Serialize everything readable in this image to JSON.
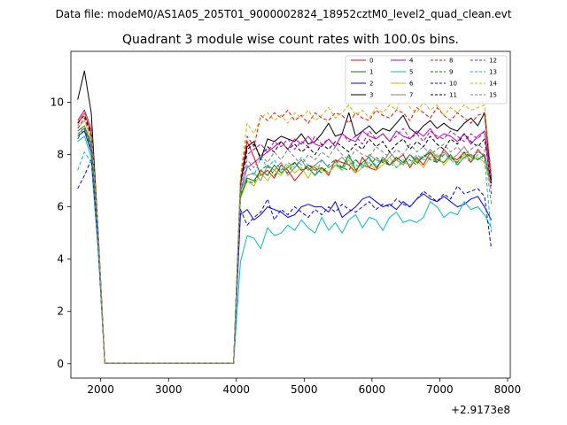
{
  "header": {
    "file_label": "Data file: modeM0/AS1A05_205T01_9000002824_18952cztM0_level2_quad_clean.evt"
  },
  "chart_data": {
    "type": "line",
    "title": "Quadrant 3 module wise count rates with 100.0s bins.",
    "xlabel": "",
    "ylabel": "",
    "x_offset_label": "+2.9173e8",
    "x_offset": 291730000,
    "xlim": [
      1560,
      8040
    ],
    "ylim": [
      -0.55,
      11.95
    ],
    "xticks": [
      2000,
      3000,
      4000,
      5000,
      6000,
      7000,
      8000
    ],
    "xtick_labels": [
      "2000",
      "3000",
      "4000",
      "5000",
      "6000",
      "7000",
      "8000"
    ],
    "yticks": [
      0,
      2,
      4,
      6,
      8,
      10
    ],
    "ytick_labels": [
      "0",
      "2",
      "4",
      "6",
      "8",
      "10"
    ],
    "grid": false,
    "legend_position": "top-right",
    "legend_ncol": 4,
    "x": [
      1660,
      1760,
      1860,
      1960,
      2060,
      2160,
      2260,
      2360,
      2460,
      2560,
      2660,
      2760,
      2860,
      2960,
      3060,
      3160,
      3260,
      3360,
      3460,
      3560,
      3660,
      3760,
      3860,
      3960,
      4060,
      4160,
      4260,
      4360,
      4460,
      4560,
      4660,
      4760,
      4860,
      4960,
      5060,
      5160,
      5260,
      5360,
      5460,
      5560,
      5660,
      5760,
      5860,
      5960,
      6060,
      6160,
      6260,
      6360,
      6460,
      6560,
      6660,
      6760,
      6860,
      6960,
      7060,
      7160,
      7260,
      7360,
      7460,
      7560,
      7660,
      7760
    ],
    "series": [
      {
        "name": "0",
        "color": "#ff0000",
        "dash": false,
        "values": [
          9.2,
          9.6,
          8.8,
          5.0,
          0.02,
          0.02,
          0.02,
          0.02,
          0.02,
          0.02,
          0.02,
          0.02,
          0.02,
          0.02,
          0.02,
          0.02,
          0.02,
          0.02,
          0.02,
          0.02,
          0.02,
          0.02,
          0.02,
          0.02,
          6.9,
          8.5,
          7.9,
          7.2,
          7.4,
          7.1,
          7.6,
          7.4,
          7.0,
          7.3,
          7.6,
          7.4,
          7.5,
          7.2,
          7.8,
          7.7,
          7.6,
          7.3,
          7.9,
          7.5,
          7.4,
          7.9,
          7.6,
          7.8,
          8.0,
          7.5,
          7.9,
          7.6,
          8.1,
          7.7,
          8.2,
          7.9,
          7.8,
          8.1,
          7.7,
          8.2,
          7.9,
          7.0
        ]
      },
      {
        "name": "1",
        "color": "#008000",
        "dash": false,
        "values": [
          8.9,
          9.1,
          8.4,
          4.9,
          0.02,
          0.02,
          0.02,
          0.02,
          0.02,
          0.02,
          0.02,
          0.02,
          0.02,
          0.02,
          0.02,
          0.02,
          0.02,
          0.02,
          0.02,
          0.02,
          0.02,
          0.02,
          0.02,
          0.02,
          6.4,
          7.1,
          7.0,
          7.4,
          7.2,
          7.6,
          7.3,
          7.5,
          7.7,
          7.4,
          7.5,
          7.2,
          7.5,
          7.3,
          7.6,
          7.5,
          8.0,
          7.4,
          7.7,
          7.9,
          7.5,
          7.8,
          7.6,
          7.9,
          7.7,
          8.0,
          7.7,
          7.9,
          8.1,
          7.8,
          7.7,
          8.0,
          7.6,
          7.9,
          8.0,
          7.8,
          8.0,
          6.9
        ]
      },
      {
        "name": "2",
        "color": "#0000ff",
        "dash": false,
        "values": [
          8.7,
          8.9,
          8.1,
          4.7,
          0.02,
          0.02,
          0.02,
          0.02,
          0.02,
          0.02,
          0.02,
          0.02,
          0.02,
          0.02,
          0.02,
          0.02,
          0.02,
          0.02,
          0.02,
          0.02,
          0.02,
          0.02,
          0.02,
          0.02,
          5.7,
          5.9,
          5.5,
          5.7,
          6.0,
          5.9,
          5.8,
          5.6,
          5.7,
          6.0,
          6.1,
          6.0,
          6.0,
          5.8,
          6.2,
          5.6,
          5.8,
          6.0,
          6.3,
          6.4,
          6.2,
          6.0,
          6.1,
          5.9,
          6.2,
          6.0,
          6.3,
          6.5,
          6.3,
          6.2,
          6.4,
          6.2,
          6.0,
          6.1,
          6.3,
          6.4,
          6.0,
          5.5
        ]
      },
      {
        "name": "3",
        "color": "#000000",
        "dash": false,
        "values": [
          10.1,
          11.2,
          9.6,
          5.2,
          0.02,
          0.02,
          0.02,
          0.02,
          0.02,
          0.02,
          0.02,
          0.02,
          0.02,
          0.02,
          0.02,
          0.02,
          0.02,
          0.02,
          0.02,
          0.02,
          0.02,
          0.02,
          0.02,
          0.02,
          6.9,
          8.3,
          8.5,
          7.8,
          8.6,
          8.5,
          8.7,
          8.6,
          8.5,
          8.8,
          8.4,
          8.5,
          8.8,
          9.2,
          8.7,
          8.8,
          9.6,
          8.7,
          8.9,
          9.1,
          8.8,
          9.0,
          8.9,
          9.2,
          9.5,
          9.0,
          8.8,
          9.1,
          9.3,
          9.0,
          9.2,
          9.0,
          8.9,
          9.2,
          9.4,
          9.1,
          9.6,
          7.0
        ]
      },
      {
        "name": "4",
        "color": "#c000c0",
        "dash": false,
        "values": [
          9.3,
          9.7,
          9.0,
          5.1,
          0.02,
          0.02,
          0.02,
          0.02,
          0.02,
          0.02,
          0.02,
          0.02,
          0.02,
          0.02,
          0.02,
          0.02,
          0.02,
          0.02,
          0.02,
          0.02,
          0.02,
          0.02,
          0.02,
          0.02,
          6.6,
          7.5,
          7.7,
          7.9,
          8.1,
          8.3,
          8.5,
          8.2,
          8.6,
          8.4,
          8.7,
          8.4,
          8.3,
          8.6,
          8.3,
          8.8,
          8.6,
          8.5,
          8.9,
          8.7,
          8.6,
          8.8,
          8.5,
          8.9,
          8.7,
          8.6,
          8.9,
          8.7,
          9.0,
          8.6,
          8.8,
          8.7,
          8.5,
          8.8,
          8.4,
          8.7,
          8.9,
          7.1
        ]
      },
      {
        "name": "5",
        "color": "#00bfbf",
        "dash": false,
        "values": [
          8.5,
          8.7,
          7.9,
          4.6,
          0.02,
          0.02,
          0.02,
          0.02,
          0.02,
          0.02,
          0.02,
          0.02,
          0.02,
          0.02,
          0.02,
          0.02,
          0.02,
          0.02,
          0.02,
          0.02,
          0.02,
          0.02,
          0.02,
          0.02,
          3.9,
          4.9,
          4.8,
          4.4,
          5.2,
          4.9,
          5.0,
          5.3,
          5.1,
          5.5,
          5.2,
          5.0,
          5.6,
          5.1,
          5.4,
          5.0,
          5.5,
          5.7,
          5.2,
          5.6,
          5.5,
          5.1,
          5.6,
          5.8,
          5.4,
          5.5,
          5.4,
          5.6,
          6.2,
          6.0,
          5.6,
          5.8,
          5.7,
          6.2,
          5.9,
          6.0,
          5.7,
          5.2
        ]
      },
      {
        "name": "6",
        "color": "#bfbf00",
        "dash": false,
        "values": [
          9.0,
          9.3,
          8.6,
          4.9,
          0.02,
          0.02,
          0.02,
          0.02,
          0.02,
          0.02,
          0.02,
          0.02,
          0.02,
          0.02,
          0.02,
          0.02,
          0.02,
          0.02,
          0.02,
          0.02,
          0.02,
          0.02,
          0.02,
          0.02,
          6.3,
          7.0,
          6.8,
          7.3,
          7.0,
          7.4,
          7.2,
          7.6,
          7.3,
          7.5,
          7.1,
          7.6,
          7.4,
          7.3,
          7.6,
          7.4,
          7.8,
          7.3,
          7.5,
          7.7,
          7.4,
          7.6,
          7.9,
          7.5,
          7.7,
          7.6,
          7.8,
          7.5,
          7.9,
          8.0,
          7.6,
          7.9,
          7.7,
          8.0,
          7.8,
          7.9,
          7.7,
          6.8
        ]
      },
      {
        "name": "7",
        "color": "#808080",
        "dash": false,
        "values": [
          8.8,
          9.0,
          8.3,
          4.8,
          0.02,
          0.02,
          0.02,
          0.02,
          0.02,
          0.02,
          0.02,
          0.02,
          0.02,
          0.02,
          0.02,
          0.02,
          0.02,
          0.02,
          0.02,
          0.02,
          0.02,
          0.02,
          0.02,
          0.02,
          6.6,
          7.2,
          7.3,
          7.0,
          7.6,
          7.4,
          7.7,
          7.2,
          7.5,
          7.8,
          7.4,
          7.6,
          7.8,
          7.5,
          7.7,
          7.9,
          7.6,
          7.8,
          7.5,
          8.0,
          7.8,
          7.7,
          8.1,
          7.8,
          7.6,
          8.0,
          7.8,
          7.9,
          8.2,
          7.9,
          8.1,
          7.8,
          8.0,
          8.3,
          7.9,
          8.1,
          8.0,
          6.9
        ]
      },
      {
        "name": "8",
        "color": "#ff0000",
        "dash": true,
        "values": [
          9.1,
          9.6,
          8.9,
          5.1,
          0.02,
          0.02,
          0.02,
          0.02,
          0.02,
          0.02,
          0.02,
          0.02,
          0.02,
          0.02,
          0.02,
          0.02,
          0.02,
          0.02,
          0.02,
          0.02,
          0.02,
          0.02,
          0.02,
          0.02,
          7.1,
          8.7,
          8.3,
          9.5,
          9.3,
          9.6,
          9.4,
          9.7,
          9.3,
          9.5,
          9.2,
          9.6,
          9.4,
          9.3,
          9.6,
          9.5,
          9.2,
          9.6,
          9.4,
          9.3,
          9.7,
          9.5,
          9.4,
          9.7,
          9.6,
          9.3,
          9.8,
          9.6,
          9.4,
          9.8,
          9.5,
          9.3,
          9.6,
          9.4,
          9.2,
          9.5,
          9.6,
          7.2
        ]
      },
      {
        "name": "9",
        "color": "#008000",
        "dash": true,
        "values": [
          8.6,
          9.0,
          8.2,
          4.8,
          0.02,
          0.02,
          0.02,
          0.02,
          0.02,
          0.02,
          0.02,
          0.02,
          0.02,
          0.02,
          0.02,
          0.02,
          0.02,
          0.02,
          0.02,
          0.02,
          0.02,
          0.02,
          0.02,
          0.02,
          6.5,
          7.0,
          6.9,
          7.4,
          7.6,
          7.2,
          7.5,
          7.3,
          7.7,
          7.4,
          7.6,
          7.5,
          7.3,
          7.6,
          7.8,
          7.5,
          7.4,
          7.8,
          7.6,
          7.5,
          7.9,
          7.7,
          7.6,
          7.9,
          7.7,
          7.8,
          7.6,
          8.0,
          7.8,
          7.7,
          8.0,
          7.9,
          7.7,
          8.1,
          7.9,
          7.8,
          8.0,
          6.8
        ]
      },
      {
        "name": "10",
        "color": "#0000ff",
        "dash": true,
        "values": [
          6.7,
          7.2,
          7.8,
          4.5,
          0.02,
          0.02,
          0.02,
          0.02,
          0.02,
          0.02,
          0.02,
          0.02,
          0.02,
          0.02,
          0.02,
          0.02,
          0.02,
          0.02,
          0.02,
          0.02,
          0.02,
          0.02,
          0.02,
          0.02,
          5.9,
          5.3,
          5.6,
          5.8,
          6.3,
          5.5,
          5.9,
          5.7,
          6.0,
          5.8,
          5.6,
          5.9,
          5.7,
          6.0,
          5.8,
          6.1,
          5.9,
          5.8,
          6.0,
          6.2,
          5.9,
          6.1,
          6.0,
          6.3,
          6.1,
          6.0,
          6.3,
          6.6,
          6.4,
          6.2,
          6.5,
          6.3,
          6.8,
          6.5,
          6.6,
          6.7,
          6.4,
          4.4
        ]
      },
      {
        "name": "11",
        "color": "#000000",
        "dash": true,
        "values": [
          9.2,
          9.5,
          8.8,
          5.0,
          0.02,
          0.02,
          0.02,
          0.02,
          0.02,
          0.02,
          0.02,
          0.02,
          0.02,
          0.02,
          0.02,
          0.02,
          0.02,
          0.02,
          0.02,
          0.02,
          0.02,
          0.02,
          0.02,
          0.02,
          6.8,
          8.2,
          8.4,
          7.9,
          8.3,
          8.1,
          8.5,
          8.2,
          8.4,
          8.1,
          8.3,
          8.0,
          8.4,
          8.2,
          8.5,
          8.3,
          8.1,
          8.4,
          8.2,
          8.6,
          8.3,
          8.5,
          8.1,
          8.4,
          8.6,
          8.2,
          8.5,
          8.3,
          8.7,
          8.4,
          8.2,
          8.6,
          8.4,
          8.8,
          8.5,
          8.3,
          8.6,
          6.9
        ]
      },
      {
        "name": "12",
        "color": "#c000c0",
        "dash": true,
        "values": [
          9.0,
          9.4,
          8.7,
          5.0,
          0.02,
          0.02,
          0.02,
          0.02,
          0.02,
          0.02,
          0.02,
          0.02,
          0.02,
          0.02,
          0.02,
          0.02,
          0.02,
          0.02,
          0.02,
          0.02,
          0.02,
          0.02,
          0.02,
          0.02,
          6.8,
          8.0,
          8.2,
          8.4,
          8.1,
          8.5,
          8.3,
          8.6,
          8.2,
          8.5,
          8.3,
          8.7,
          8.4,
          8.6,
          8.3,
          8.8,
          8.5,
          8.7,
          8.4,
          8.9,
          8.6,
          8.8,
          8.5,
          8.7,
          9.0,
          8.6,
          8.8,
          8.5,
          8.9,
          8.7,
          8.6,
          8.9,
          8.7,
          8.5,
          8.8,
          8.6,
          8.9,
          6.5
        ]
      },
      {
        "name": "13",
        "color": "#00bfbf",
        "dash": true,
        "values": [
          7.4,
          8.1,
          7.7,
          4.4,
          0.02,
          0.02,
          0.02,
          0.02,
          0.02,
          0.02,
          0.02,
          0.02,
          0.02,
          0.02,
          0.02,
          0.02,
          0.02,
          0.02,
          0.02,
          0.02,
          0.02,
          0.02,
          0.02,
          0.02,
          6.5,
          7.6,
          7.2,
          7.9,
          7.5,
          7.8,
          7.4,
          7.7,
          7.5,
          7.9,
          7.6,
          7.2,
          7.8,
          7.5,
          7.7,
          7.4,
          7.9,
          7.6,
          7.5,
          7.8,
          7.6,
          7.9,
          7.7,
          7.5,
          7.8,
          7.6,
          8.0,
          7.8,
          7.9,
          7.7,
          8.1,
          7.8,
          7.6,
          7.9,
          7.7,
          8.0,
          7.8,
          5.0
        ]
      },
      {
        "name": "14",
        "color": "#bfbf00",
        "dash": true,
        "values": [
          9.1,
          9.6,
          9.0,
          5.2,
          0.02,
          0.02,
          0.02,
          0.02,
          0.02,
          0.02,
          0.02,
          0.02,
          0.02,
          0.02,
          0.02,
          0.02,
          0.02,
          0.02,
          0.02,
          0.02,
          0.02,
          0.02,
          0.02,
          0.02,
          7.2,
          9.2,
          8.8,
          9.4,
          9.6,
          9.3,
          9.5,
          9.2,
          9.6,
          9.4,
          9.7,
          9.3,
          9.5,
          9.8,
          9.4,
          9.6,
          9.9,
          9.5,
          9.7,
          9.4,
          9.8,
          9.6,
          9.9,
          9.7,
          10.4,
          9.8,
          9.6,
          10.0,
          9.7,
          9.9,
          9.5,
          9.8,
          9.6,
          9.9,
          9.7,
          9.8,
          9.9,
          7.3
        ]
      },
      {
        "name": "15",
        "color": "#808080",
        "dash": true,
        "values": [
          8.7,
          9.1,
          8.5,
          4.9,
          0.02,
          0.02,
          0.02,
          0.02,
          0.02,
          0.02,
          0.02,
          0.02,
          0.02,
          0.02,
          0.02,
          0.02,
          0.02,
          0.02,
          0.02,
          0.02,
          0.02,
          0.02,
          0.02,
          0.02,
          6.7,
          7.8,
          7.5,
          8.0,
          7.7,
          8.1,
          7.8,
          8.2,
          7.9,
          7.6,
          8.0,
          7.8,
          8.1,
          7.9,
          8.3,
          8.0,
          7.8,
          8.2,
          8.0,
          7.9,
          8.3,
          8.1,
          7.9,
          8.2,
          8.0,
          8.4,
          8.1,
          8.3,
          8.0,
          8.2,
          8.4,
          8.1,
          8.3,
          8.0,
          8.2,
          8.4,
          8.2,
          6.1
        ]
      }
    ]
  }
}
